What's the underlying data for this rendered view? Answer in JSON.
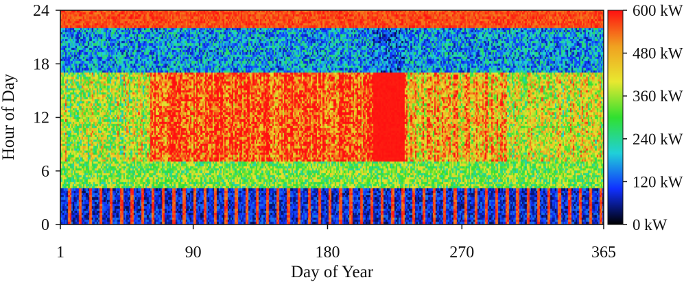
{
  "chart_data": {
    "type": "heatmap",
    "title": "",
    "xlabel": "Day of Year",
    "ylabel": "Hour of Day",
    "xlim": [
      1,
      365
    ],
    "ylim": [
      0,
      24
    ],
    "x_ticks": [
      1,
      90,
      180,
      270,
      365
    ],
    "x_tick_labels": [
      "1",
      "90",
      "180",
      "270",
      "365"
    ],
    "y_ticks": [
      0,
      6,
      12,
      18,
      24
    ],
    "y_tick_labels": [
      "0",
      "6",
      "12",
      "18",
      "24"
    ],
    "colorbar": {
      "unit": "kW",
      "range": [
        0,
        600
      ],
      "ticks": [
        0,
        120,
        240,
        360,
        480,
        600
      ],
      "tick_labels": [
        "0 kW",
        "120 kW",
        "240 kW",
        "360 kW",
        "480 kW",
        "600 kW"
      ],
      "colors": [
        "#000000",
        "#1030ff",
        "#20d0d8",
        "#30e030",
        "#e8e830",
        "#f0a020",
        "#ff1010"
      ]
    },
    "hourly_profile_kw": [
      {
        "hours": [
          0,
          4
        ],
        "typical_kw": 90,
        "note": ""
      },
      {
        "hours": [
          4,
          7
        ],
        "typical_kw": 330,
        "note": ""
      },
      {
        "hours": [
          7,
          17
        ],
        "typical_kw": 540,
        "note": ""
      },
      {
        "hours": [
          17,
          22
        ],
        "typical_kw": 60,
        "note": ""
      },
      {
        "hours": [
          22,
          24
        ],
        "typical_kw": 600,
        "note": ""
      }
    ],
    "seasonal_profile": [
      {
        "days": [
          1,
          60
        ],
        "daytime_kw": 380
      },
      {
        "days": [
          60,
          210
        ],
        "daytime_kw": 560
      },
      {
        "days": [
          210,
          232
        ],
        "daytime_kw": 600
      },
      {
        "days": [
          232,
          300
        ],
        "daytime_kw": 470
      },
      {
        "days": [
          300,
          365
        ],
        "daytime_kw": 400
      }
    ]
  }
}
